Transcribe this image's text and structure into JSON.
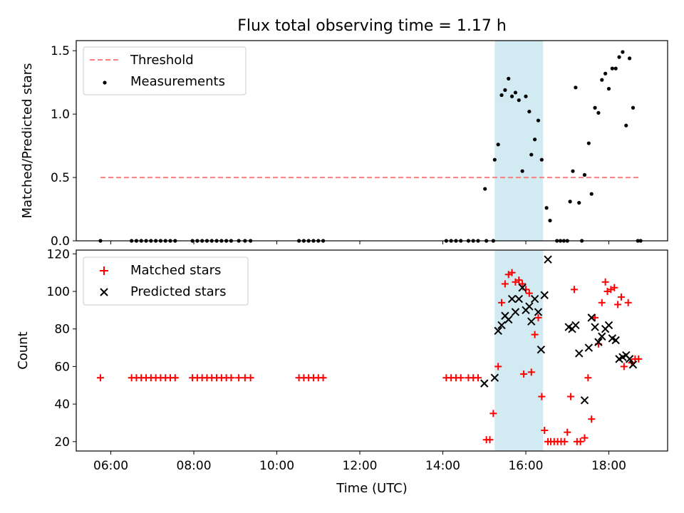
{
  "title": "Flux total observing time = 1.17 h",
  "colors": {
    "threshold": "#ff7f7f",
    "measurement": "#000000",
    "matched": "#ff0000",
    "predicted": "#000000",
    "shade": "#add8e6"
  },
  "chart_data": [
    {
      "type": "scatter",
      "ylabel": "Matched/Predicted stars",
      "xlim": [
        "05:10",
        "19:25"
      ],
      "ylim": [
        0,
        1.58
      ],
      "xticks": [
        "06:00",
        "08:00",
        "10:00",
        "12:00",
        "14:00",
        "16:00",
        "18:00"
      ],
      "yticks": [
        "0.0",
        "0.5",
        "1.0",
        "1.5"
      ],
      "shaded_interval": [
        "15:15",
        "16:25"
      ],
      "legend": {
        "position": "top-left",
        "entries": [
          "Threshold",
          "Measurements"
        ]
      },
      "threshold": {
        "name": "Threshold",
        "value": 0.5,
        "x": [
          "05:45",
          "18:45"
        ]
      },
      "measurements": {
        "name": "Measurements",
        "points": [
          [
            "05:45",
            0
          ],
          [
            "06:30",
            0
          ],
          [
            "06:37",
            0
          ],
          [
            "06:44",
            0
          ],
          [
            "06:51",
            0
          ],
          [
            "06:58",
            0
          ],
          [
            "07:05",
            0
          ],
          [
            "07:12",
            0
          ],
          [
            "07:19",
            0
          ],
          [
            "07:26",
            0
          ],
          [
            "07:33",
            0
          ],
          [
            "07:58",
            0
          ],
          [
            "08:05",
            0
          ],
          [
            "08:12",
            0
          ],
          [
            "08:19",
            0
          ],
          [
            "08:26",
            0
          ],
          [
            "08:33",
            0
          ],
          [
            "08:40",
            0
          ],
          [
            "08:47",
            0
          ],
          [
            "08:54",
            0
          ],
          [
            "09:05",
            0
          ],
          [
            "09:14",
            0
          ],
          [
            "09:22",
            0
          ],
          [
            "10:32",
            0
          ],
          [
            "10:39",
            0
          ],
          [
            "10:46",
            0
          ],
          [
            "10:53",
            0
          ],
          [
            "11:00",
            0
          ],
          [
            "11:07",
            0
          ],
          [
            "14:05",
            0
          ],
          [
            "14:12",
            0
          ],
          [
            "14:19",
            0
          ],
          [
            "14:26",
            0
          ],
          [
            "14:37",
            0
          ],
          [
            "14:44",
            0
          ],
          [
            "14:51",
            0
          ],
          [
            "15:03",
            0
          ],
          [
            "15:13",
            0
          ],
          [
            "15:01",
            0.41
          ],
          [
            "15:15",
            0.64
          ],
          [
            "15:20",
            0.76
          ],
          [
            "15:25",
            1.15
          ],
          [
            "15:30",
            1.19
          ],
          [
            "15:35",
            1.28
          ],
          [
            "15:40",
            1.14
          ],
          [
            "15:45",
            1.17
          ],
          [
            "15:50",
            1.11
          ],
          [
            "15:55",
            0.55
          ],
          [
            "16:00",
            1.14
          ],
          [
            "16:05",
            1.02
          ],
          [
            "16:08",
            0.68
          ],
          [
            "16:13",
            0.8
          ],
          [
            "16:18",
            0.95
          ],
          [
            "16:23",
            0.64
          ],
          [
            "16:30",
            0.26
          ],
          [
            "16:35",
            0.16
          ],
          [
            "16:45",
            0
          ],
          [
            "16:50",
            0
          ],
          [
            "16:55",
            0
          ],
          [
            "17:00",
            0
          ],
          [
            "17:04",
            0.31
          ],
          [
            "17:08",
            0.55
          ],
          [
            "17:12",
            1.21
          ],
          [
            "17:17",
            0.3
          ],
          [
            "17:21",
            0
          ],
          [
            "17:25",
            0.52
          ],
          [
            "17:31",
            0.77
          ],
          [
            "17:35",
            0.37
          ],
          [
            "17:40",
            1.05
          ],
          [
            "17:45",
            1.01
          ],
          [
            "17:50",
            1.27
          ],
          [
            "17:55",
            1.32
          ],
          [
            "18:00",
            1.2
          ],
          [
            "18:05",
            1.36
          ],
          [
            "18:10",
            1.36
          ],
          [
            "18:15",
            1.45
          ],
          [
            "18:20",
            1.49
          ],
          [
            "18:25",
            0.91
          ],
          [
            "18:30",
            1.44
          ],
          [
            "18:35",
            1.05
          ],
          [
            "18:42",
            0
          ],
          [
            "18:46",
            0
          ]
        ]
      }
    },
    {
      "type": "scatter",
      "ylabel": "Count",
      "xlabel": "Time (UTC)",
      "xlim": [
        "05:10",
        "19:25"
      ],
      "ylim": [
        15,
        122
      ],
      "xticks": [
        "06:00",
        "08:00",
        "10:00",
        "12:00",
        "14:00",
        "16:00",
        "18:00"
      ],
      "yticks": [
        "20",
        "40",
        "60",
        "80",
        "100",
        "120"
      ],
      "shaded_interval": [
        "15:15",
        "16:25"
      ],
      "legend": {
        "position": "top-left",
        "entries": [
          "Matched stars",
          "Predicted stars"
        ]
      },
      "series": [
        {
          "name": "Matched stars",
          "points": [
            [
              "05:45",
              54
            ],
            [
              "06:30",
              54
            ],
            [
              "06:37",
              54
            ],
            [
              "06:44",
              54
            ],
            [
              "06:51",
              54
            ],
            [
              "06:58",
              54
            ],
            [
              "07:05",
              54
            ],
            [
              "07:12",
              54
            ],
            [
              "07:19",
              54
            ],
            [
              "07:26",
              54
            ],
            [
              "07:33",
              54
            ],
            [
              "07:58",
              54
            ],
            [
              "08:05",
              54
            ],
            [
              "08:12",
              54
            ],
            [
              "08:19",
              54
            ],
            [
              "08:26",
              54
            ],
            [
              "08:33",
              54
            ],
            [
              "08:40",
              54
            ],
            [
              "08:47",
              54
            ],
            [
              "08:54",
              54
            ],
            [
              "09:05",
              54
            ],
            [
              "09:14",
              54
            ],
            [
              "09:22",
              54
            ],
            [
              "10:32",
              54
            ],
            [
              "10:39",
              54
            ],
            [
              "10:46",
              54
            ],
            [
              "10:53",
              54
            ],
            [
              "11:00",
              54
            ],
            [
              "11:07",
              54
            ],
            [
              "14:05",
              54
            ],
            [
              "14:12",
              54
            ],
            [
              "14:19",
              54
            ],
            [
              "14:26",
              54
            ],
            [
              "14:37",
              54
            ],
            [
              "14:44",
              54
            ],
            [
              "14:51",
              54
            ],
            [
              "15:03",
              21
            ],
            [
              "15:08",
              21
            ],
            [
              "15:13",
              35
            ],
            [
              "15:20",
              60
            ],
            [
              "15:25",
              94
            ],
            [
              "15:30",
              104
            ],
            [
              "15:35",
              109
            ],
            [
              "15:40",
              110
            ],
            [
              "15:45",
              105
            ],
            [
              "15:50",
              106
            ],
            [
              "15:55",
              104
            ],
            [
              "15:57",
              56
            ],
            [
              "16:00",
              101
            ],
            [
              "16:05",
              99
            ],
            [
              "16:08",
              57
            ],
            [
              "16:13",
              77
            ],
            [
              "16:18",
              86
            ],
            [
              "16:23",
              44
            ],
            [
              "16:27",
              26
            ],
            [
              "16:32",
              20
            ],
            [
              "16:36",
              20
            ],
            [
              "16:41",
              20
            ],
            [
              "16:46",
              20
            ],
            [
              "16:51",
              20
            ],
            [
              "16:56",
              20
            ],
            [
              "17:00",
              25
            ],
            [
              "17:05",
              44
            ],
            [
              "17:10",
              101
            ],
            [
              "17:14",
              20
            ],
            [
              "17:19",
              20
            ],
            [
              "17:25",
              22
            ],
            [
              "17:30",
              54
            ],
            [
              "17:35",
              32
            ],
            [
              "17:40",
              86
            ],
            [
              "17:45",
              72
            ],
            [
              "17:50",
              94
            ],
            [
              "17:55",
              105
            ],
            [
              "17:58",
              100
            ],
            [
              "18:03",
              101
            ],
            [
              "18:08",
              102
            ],
            [
              "18:13",
              93
            ],
            [
              "18:18",
              97
            ],
            [
              "18:22",
              60
            ],
            [
              "18:28",
              94
            ],
            [
              "18:33",
              62
            ],
            [
              "18:38",
              64
            ],
            [
              "18:43",
              64
            ]
          ]
        },
        {
          "name": "Predicted stars",
          "points": [
            [
              "15:00",
              51
            ],
            [
              "15:15",
              54
            ],
            [
              "15:20",
              79
            ],
            [
              "15:25",
              82
            ],
            [
              "15:30",
              87
            ],
            [
              "15:35",
              85
            ],
            [
              "15:40",
              96
            ],
            [
              "15:45",
              89
            ],
            [
              "15:50",
              96
            ],
            [
              "15:55",
              102
            ],
            [
              "16:00",
              90
            ],
            [
              "16:05",
              92
            ],
            [
              "16:08",
              84
            ],
            [
              "16:13",
              96
            ],
            [
              "16:18",
              89
            ],
            [
              "16:22",
              69
            ],
            [
              "16:27",
              98
            ],
            [
              "16:32",
              117
            ],
            [
              "17:02",
              81
            ],
            [
              "17:07",
              80
            ],
            [
              "17:12",
              82
            ],
            [
              "17:17",
              67
            ],
            [
              "17:25",
              42
            ],
            [
              "17:31",
              70
            ],
            [
              "17:35",
              86
            ],
            [
              "17:40",
              81
            ],
            [
              "17:45",
              73
            ],
            [
              "17:50",
              76
            ],
            [
              "17:55",
              80
            ],
            [
              "18:00",
              82
            ],
            [
              "18:05",
              75
            ],
            [
              "18:10",
              74
            ],
            [
              "18:15",
              64
            ],
            [
              "18:20",
              65
            ],
            [
              "18:25",
              66
            ],
            [
              "18:30",
              64
            ],
            [
              "18:35",
              61
            ]
          ]
        }
      ]
    }
  ]
}
